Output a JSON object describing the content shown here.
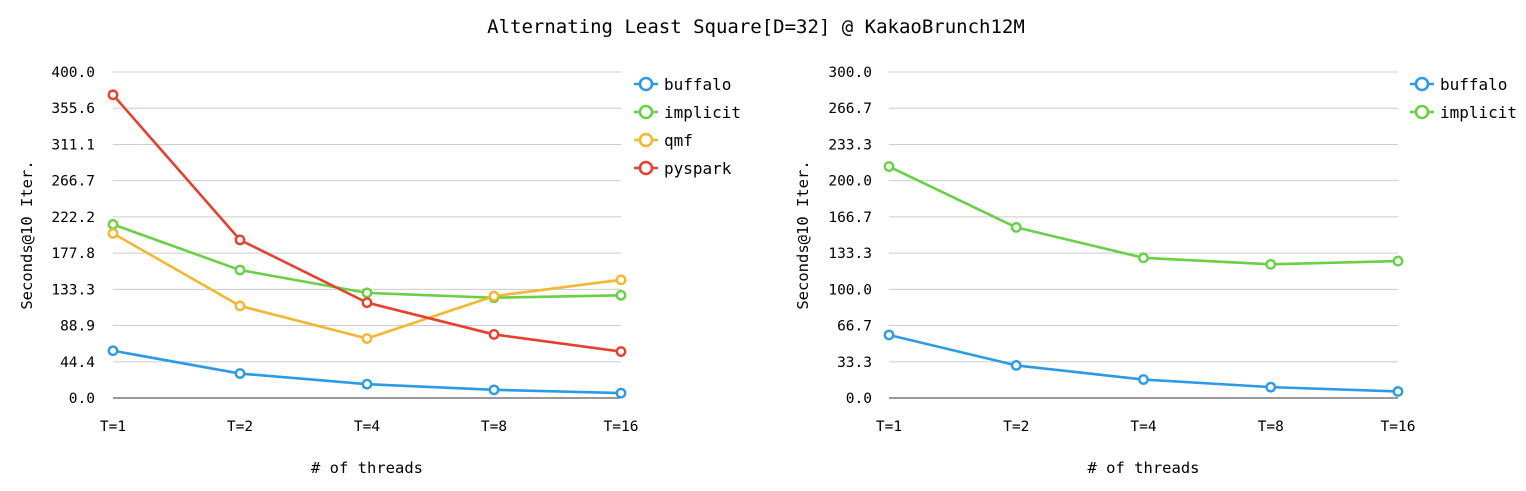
{
  "title": "Alternating Least Square[D=32] @ KakaoBrunch12M",
  "colors": {
    "buffalo": "#2b9be8",
    "implicit": "#68d146",
    "qmf": "#f4b731",
    "pyspark": "#e8402c"
  },
  "chart_data": [
    {
      "type": "line",
      "categories": [
        "T=1",
        "T=2",
        "T=4",
        "T=8",
        "T=16"
      ],
      "ylim": [
        0,
        400
      ],
      "yticks": [
        "0.0",
        "44.4",
        "88.9",
        "133.3",
        "177.8",
        "222.2",
        "266.7",
        "311.1",
        "355.6",
        "400.0"
      ],
      "xlabel": "# of threads",
      "ylabel": "Seconds@10 Iter.",
      "grid": true,
      "legend_position": "top-right",
      "series": [
        {
          "name": "buffalo",
          "values": [
            58,
            30,
            17,
            10,
            6
          ]
        },
        {
          "name": "implicit",
          "values": [
            213,
            157,
            129,
            123,
            126
          ]
        },
        {
          "name": "qmf",
          "values": [
            202,
            113,
            73,
            125,
            145
          ]
        },
        {
          "name": "pyspark",
          "values": [
            372,
            194,
            117,
            78,
            57
          ]
        }
      ]
    },
    {
      "type": "line",
      "categories": [
        "T=1",
        "T=2",
        "T=4",
        "T=8",
        "T=16"
      ],
      "ylim": [
        0,
        300
      ],
      "yticks": [
        "0.0",
        "33.3",
        "66.7",
        "100.0",
        "133.3",
        "166.7",
        "200.0",
        "233.3",
        "266.7",
        "300.0"
      ],
      "xlabel": "# of threads",
      "ylabel": "Seconds@10 Iter.",
      "grid": true,
      "legend_position": "top-right",
      "series": [
        {
          "name": "buffalo",
          "values": [
            58,
            30,
            17,
            10,
            6
          ]
        },
        {
          "name": "implicit",
          "values": [
            213,
            157,
            129,
            123,
            126
          ]
        }
      ]
    }
  ]
}
